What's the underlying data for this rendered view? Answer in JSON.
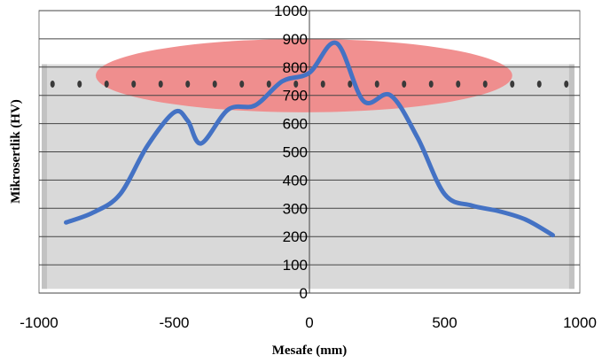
{
  "chart_data": {
    "type": "line",
    "title": "",
    "xlabel": "Mesafe (mm)",
    "ylabel": "Mikrosertlik (HV)",
    "xlim": [
      -1000,
      1000
    ],
    "ylim": [
      0,
      1000
    ],
    "x_ticks": [
      -1000,
      -500,
      0,
      500,
      1000
    ],
    "y_ticks": [
      0,
      100,
      200,
      300,
      400,
      500,
      600,
      700,
      800,
      900,
      1000
    ],
    "grid": "horizontal",
    "legend": "none",
    "series": [
      {
        "color": "#4472C4",
        "x": [
          -900,
          -800,
          -700,
          -600,
          -500,
          -450,
          -400,
          -300,
          -200,
          -100,
          0,
          100,
          200,
          300,
          400,
          500,
          600,
          700,
          800,
          900
        ],
        "y": [
          250,
          285,
          350,
          520,
          640,
          610,
          530,
          650,
          665,
          750,
          780,
          885,
          680,
          700,
          550,
          350,
          310,
          290,
          260,
          205
        ]
      }
    ],
    "background_image": {
      "description_colors": {
        "specimen": "#d9d9d9",
        "specimen_edge": "#c2c2c2",
        "weld_zone": "#f08a8a",
        "indent": "#3a3a3a"
      },
      "indent_x_positions": [
        -950,
        -850,
        -750,
        -650,
        -550,
        -450,
        -350,
        -250,
        -150,
        -50,
        50,
        150,
        250,
        350,
        450,
        550,
        650,
        750,
        850,
        950
      ],
      "indent_level": 740
    }
  }
}
